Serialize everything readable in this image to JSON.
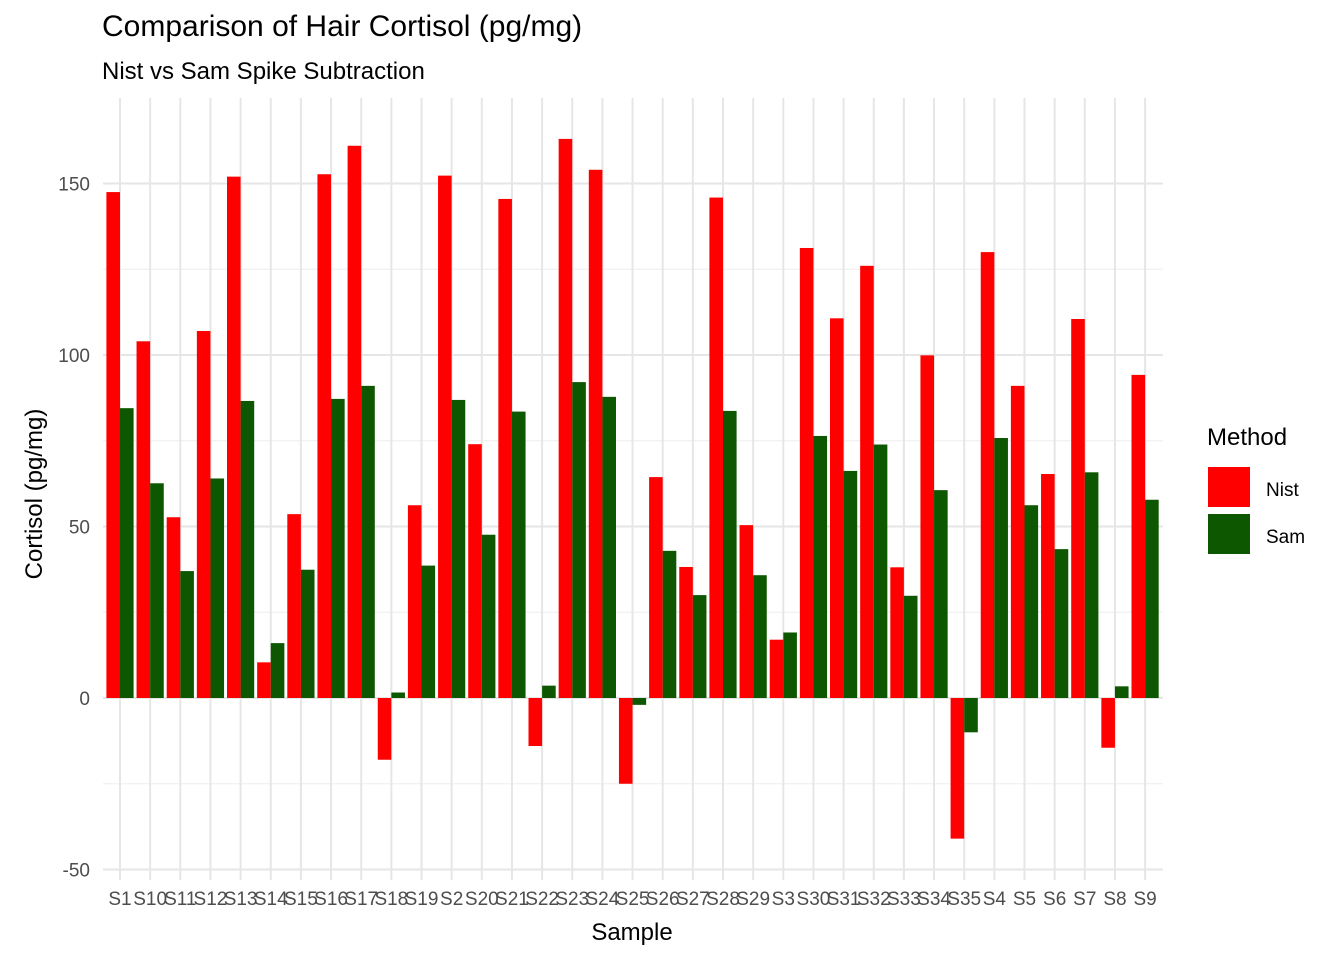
{
  "chart_data": {
    "type": "bar",
    "title": "Comparison of Hair Cortisol (pg/mg)",
    "subtitle": "Nist vs Sam Spike Subtraction",
    "xlabel": "Sample",
    "ylabel": "Cortisol (pg/mg)",
    "ylim": [
      -52,
      172
    ],
    "yticks": [
      -50,
      0,
      50,
      100,
      150
    ],
    "grid": true,
    "legend": {
      "title": "Method",
      "position": "right"
    },
    "categories": [
      "S1",
      "S10",
      "S11",
      "S12",
      "S13",
      "S14",
      "S15",
      "S16",
      "S17",
      "S18",
      "S19",
      "S2",
      "S20",
      "S21",
      "S22",
      "S23",
      "S24",
      "S25",
      "S26",
      "S27",
      "S28",
      "S29",
      "S3",
      "S30",
      "S31",
      "S32",
      "S33",
      "S34",
      "S35",
      "S4",
      "S5",
      "S6",
      "S7",
      "S8",
      "S9"
    ],
    "series": [
      {
        "name": "Nist",
        "color": "#ff0000",
        "values": [
          147.5,
          104,
          52.7,
          107,
          152,
          10.4,
          53.6,
          152.7,
          161,
          -18,
          56.2,
          152.3,
          74,
          145.5,
          -14,
          163,
          154,
          -25,
          64.4,
          38.2,
          145.9,
          50.4,
          17,
          131.2,
          110.7,
          126,
          38.1,
          99.9,
          -41,
          130,
          91,
          65.3,
          110.5,
          -14.5,
          94.2
        ]
      },
      {
        "name": "Sam",
        "color": "#0d5700",
        "values": [
          84.5,
          62.6,
          37,
          64,
          86.6,
          16,
          37.4,
          87.2,
          91,
          1.6,
          38.6,
          86.9,
          47.6,
          83.5,
          3.6,
          92.1,
          87.8,
          -2,
          42.9,
          30,
          83.7,
          35.8,
          19.1,
          76.4,
          66.2,
          73.9,
          29.8,
          60.6,
          -10,
          75.8,
          56.2,
          43.4,
          65.8,
          3.4,
          57.8
        ]
      }
    ]
  }
}
